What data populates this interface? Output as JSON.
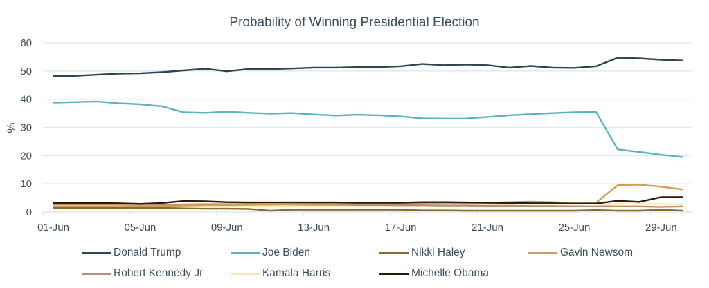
{
  "chart_data": {
    "type": "line",
    "title": "Probability of Winning Presidential Election",
    "xlabel": "",
    "ylabel": "%",
    "ylim": [
      0,
      60
    ],
    "yticks": [
      0,
      10,
      20,
      30,
      40,
      50,
      60
    ],
    "grid": true,
    "legend_position": "bottom",
    "x": [
      "01-Jun",
      "02-Jun",
      "03-Jun",
      "04-Jun",
      "05-Jun",
      "06-Jun",
      "07-Jun",
      "08-Jun",
      "09-Jun",
      "10-Jun",
      "11-Jun",
      "12-Jun",
      "13-Jun",
      "14-Jun",
      "15-Jun",
      "16-Jun",
      "17-Jun",
      "18-Jun",
      "19-Jun",
      "20-Jun",
      "21-Jun",
      "22-Jun",
      "23-Jun",
      "24-Jun",
      "25-Jun",
      "26-Jun",
      "27-Jun",
      "28-Jun",
      "29-Jun",
      "30-Jun"
    ],
    "xtick_labels": [
      "01-Jun",
      "05-Jun",
      "09-Jun",
      "13-Jun",
      "17-Jun",
      "21-Jun",
      "25-Jun",
      "29-Jun"
    ],
    "series": [
      {
        "name": "Donald Trump",
        "color": "#2e4552",
        "values": [
          48.3,
          48.3,
          48.7,
          49.1,
          49.2,
          49.6,
          50.2,
          50.8,
          49.9,
          50.7,
          50.7,
          50.9,
          51.2,
          51.2,
          51.4,
          51.4,
          51.7,
          52.5,
          52.1,
          52.3,
          52.1,
          51.2,
          51.8,
          51.2,
          51.1,
          51.7,
          54.7,
          54.5,
          54.0,
          53.7
        ]
      },
      {
        "name": "Joe Biden",
        "color": "#5ab4c0",
        "values": [
          38.8,
          39.0,
          39.2,
          38.6,
          38.2,
          37.5,
          35.4,
          35.2,
          35.6,
          35.2,
          34.9,
          35.1,
          34.6,
          34.2,
          34.5,
          34.3,
          33.9,
          33.2,
          33.1,
          33.1,
          33.7,
          34.3,
          34.7,
          35.1,
          35.4,
          35.5,
          22.2,
          21.3,
          20.3,
          19.5
        ]
      },
      {
        "name": "Nikki Haley",
        "color": "#8c6a2e",
        "values": [
          1.5,
          1.5,
          1.5,
          1.5,
          1.5,
          1.5,
          1.3,
          1.2,
          1.2,
          1.1,
          0.5,
          0.8,
          0.8,
          0.8,
          0.8,
          0.8,
          0.8,
          0.6,
          0.6,
          0.5,
          0.5,
          0.5,
          0.5,
          0.5,
          0.5,
          0.7,
          0.5,
          0.5,
          0.8,
          0.5
        ]
      },
      {
        "name": "Gavin Newsom",
        "color": "#d39e54",
        "values": [
          2.0,
          2.0,
          2.0,
          2.0,
          2.0,
          2.0,
          2.3,
          2.5,
          2.5,
          2.6,
          2.7,
          2.8,
          2.9,
          2.9,
          2.9,
          2.9,
          3.0,
          3.1,
          3.2,
          3.2,
          3.3,
          3.5,
          3.7,
          3.5,
          3.2,
          3.3,
          9.5,
          9.7,
          9.0,
          8.0
        ]
      },
      {
        "name": "Robert Kennedy Jr",
        "color": "#b8906e",
        "values": [
          2.7,
          2.7,
          2.7,
          2.7,
          2.6,
          2.6,
          2.7,
          2.8,
          2.8,
          2.8,
          2.7,
          2.7,
          2.6,
          2.6,
          2.5,
          2.5,
          2.4,
          2.4,
          2.3,
          2.3,
          2.2,
          2.2,
          2.1,
          2.1,
          2.0,
          2.0,
          2.0,
          2.0,
          1.8,
          2.0
        ]
      },
      {
        "name": "Kamala Harris",
        "color": "#fde3b3",
        "values": [
          1.8,
          1.8,
          1.8,
          1.8,
          1.8,
          1.8,
          2.0,
          2.1,
          2.1,
          2.2,
          2.2,
          2.2,
          2.2,
          2.3,
          2.3,
          2.3,
          2.3,
          2.3,
          2.3,
          2.3,
          2.2,
          2.2,
          2.2,
          2.2,
          2.2,
          1.9,
          3.0,
          3.0,
          2.8,
          2.8
        ]
      },
      {
        "name": "Michelle Obama",
        "color": "#2a1a0a",
        "values": [
          3.2,
          3.2,
          3.2,
          3.1,
          2.9,
          3.2,
          3.9,
          3.8,
          3.5,
          3.4,
          3.4,
          3.4,
          3.4,
          3.4,
          3.3,
          3.3,
          3.3,
          3.5,
          3.5,
          3.4,
          3.3,
          3.2,
          3.1,
          3.1,
          3.0,
          3.0,
          4.0,
          3.6,
          5.3,
          5.3
        ]
      }
    ]
  }
}
